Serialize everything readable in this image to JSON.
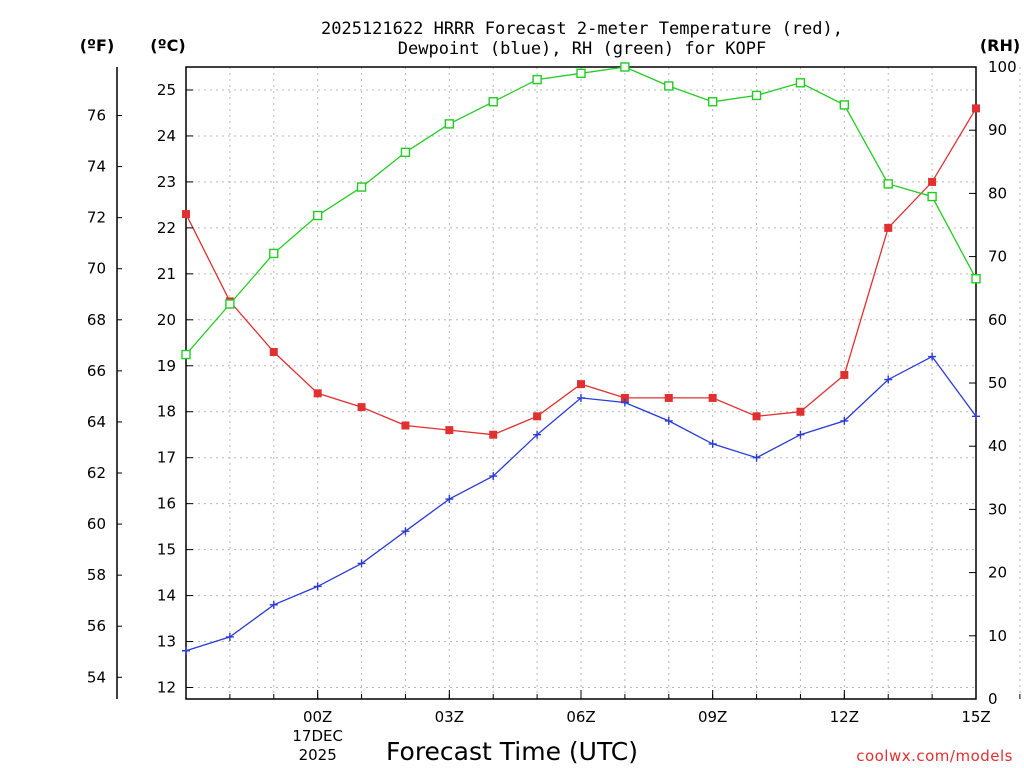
{
  "chart_data": {
    "type": "line",
    "title_line1": "2025121622 HRRR Forecast 2-meter Temperature (red),",
    "title_line2": "Dewpoint (blue), RH (green) for KOPF",
    "xlabel": "Forecast Time (UTC)",
    "credit": "coolwx.com/models",
    "left_outer_unit": "(ºF)",
    "left_inner_unit": "(ºC)",
    "right_unit": "(RH)",
    "x_hours": [
      -3,
      -2,
      -1,
      0,
      1,
      2,
      3,
      4,
      5,
      6,
      7,
      8,
      9,
      10,
      11,
      12,
      13,
      14,
      15,
      16
    ],
    "x_ticks": [
      {
        "hour": 0,
        "label": "00Z",
        "sub1": "17DEC",
        "sub2": "2025"
      },
      {
        "hour": 3,
        "label": "03Z",
        "sub1": "",
        "sub2": ""
      },
      {
        "hour": 6,
        "label": "06Z",
        "sub1": "",
        "sub2": ""
      },
      {
        "hour": 9,
        "label": "09Z",
        "sub1": "",
        "sub2": ""
      },
      {
        "hour": 12,
        "label": "12Z",
        "sub1": "",
        "sub2": ""
      },
      {
        "hour": 15,
        "label": "15Z",
        "sub1": "",
        "sub2": ""
      }
    ],
    "celsius_axis": {
      "min": 11.75,
      "max": 25.5,
      "ticks": [
        12,
        13,
        14,
        15,
        16,
        17,
        18,
        19,
        20,
        21,
        22,
        23,
        24,
        25
      ]
    },
    "fahrenheit_ticks": [
      54,
      56,
      58,
      60,
      62,
      64,
      66,
      68,
      70,
      72,
      74,
      76
    ],
    "rh_axis": {
      "min": 0,
      "max": 100,
      "ticks": [
        0,
        10,
        20,
        30,
        40,
        50,
        60,
        70,
        80,
        90,
        100
      ]
    },
    "series": [
      {
        "name": "Temperature",
        "color": "#e03030",
        "marker": "filled-square",
        "axis": "C",
        "values": [
          22.3,
          20.4,
          19.3,
          18.4,
          18.1,
          17.7,
          17.6,
          17.5,
          17.9,
          18.6,
          18.3,
          18.3,
          18.3,
          17.9,
          18.0,
          18.8,
          22.0,
          23.0,
          24.6,
          null
        ]
      },
      {
        "name": "Dewpoint",
        "color": "#2a3bd6",
        "marker": "plus",
        "axis": "C",
        "values": [
          12.8,
          13.1,
          13.8,
          14.2,
          14.7,
          15.4,
          16.1,
          16.6,
          17.5,
          18.3,
          18.2,
          17.8,
          17.3,
          17.0,
          17.5,
          17.8,
          18.7,
          19.2,
          17.9,
          null
        ]
      },
      {
        "name": "RH",
        "color": "#22cc22",
        "marker": "open-square",
        "axis": "RH",
        "values": [
          54.5,
          62.5,
          70.5,
          76.5,
          81,
          86.5,
          91,
          94.5,
          98,
          99,
          100,
          97,
          94.5,
          95.5,
          97.5,
          94,
          81.5,
          79.5,
          66.5,
          null
        ]
      }
    ]
  }
}
